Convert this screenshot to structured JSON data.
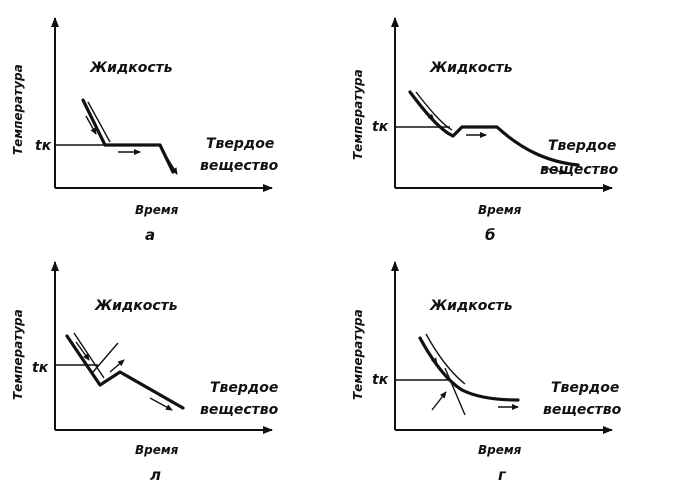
{
  "liquid_label": "Жидкость",
  "solid_label_line1": "Твердое",
  "solid_label_line2": "вещество",
  "y_axis_label": "Температура",
  "x_axis_label": "Время",
  "tk_label": "tк",
  "panels": [
    {
      "id": "a",
      "sublabel": "а"
    },
    {
      "id": "b",
      "sublabel": "б"
    },
    {
      "id": "c",
      "sublabel": "л"
    },
    {
      "id": "d",
      "sublabel": "г"
    }
  ]
}
